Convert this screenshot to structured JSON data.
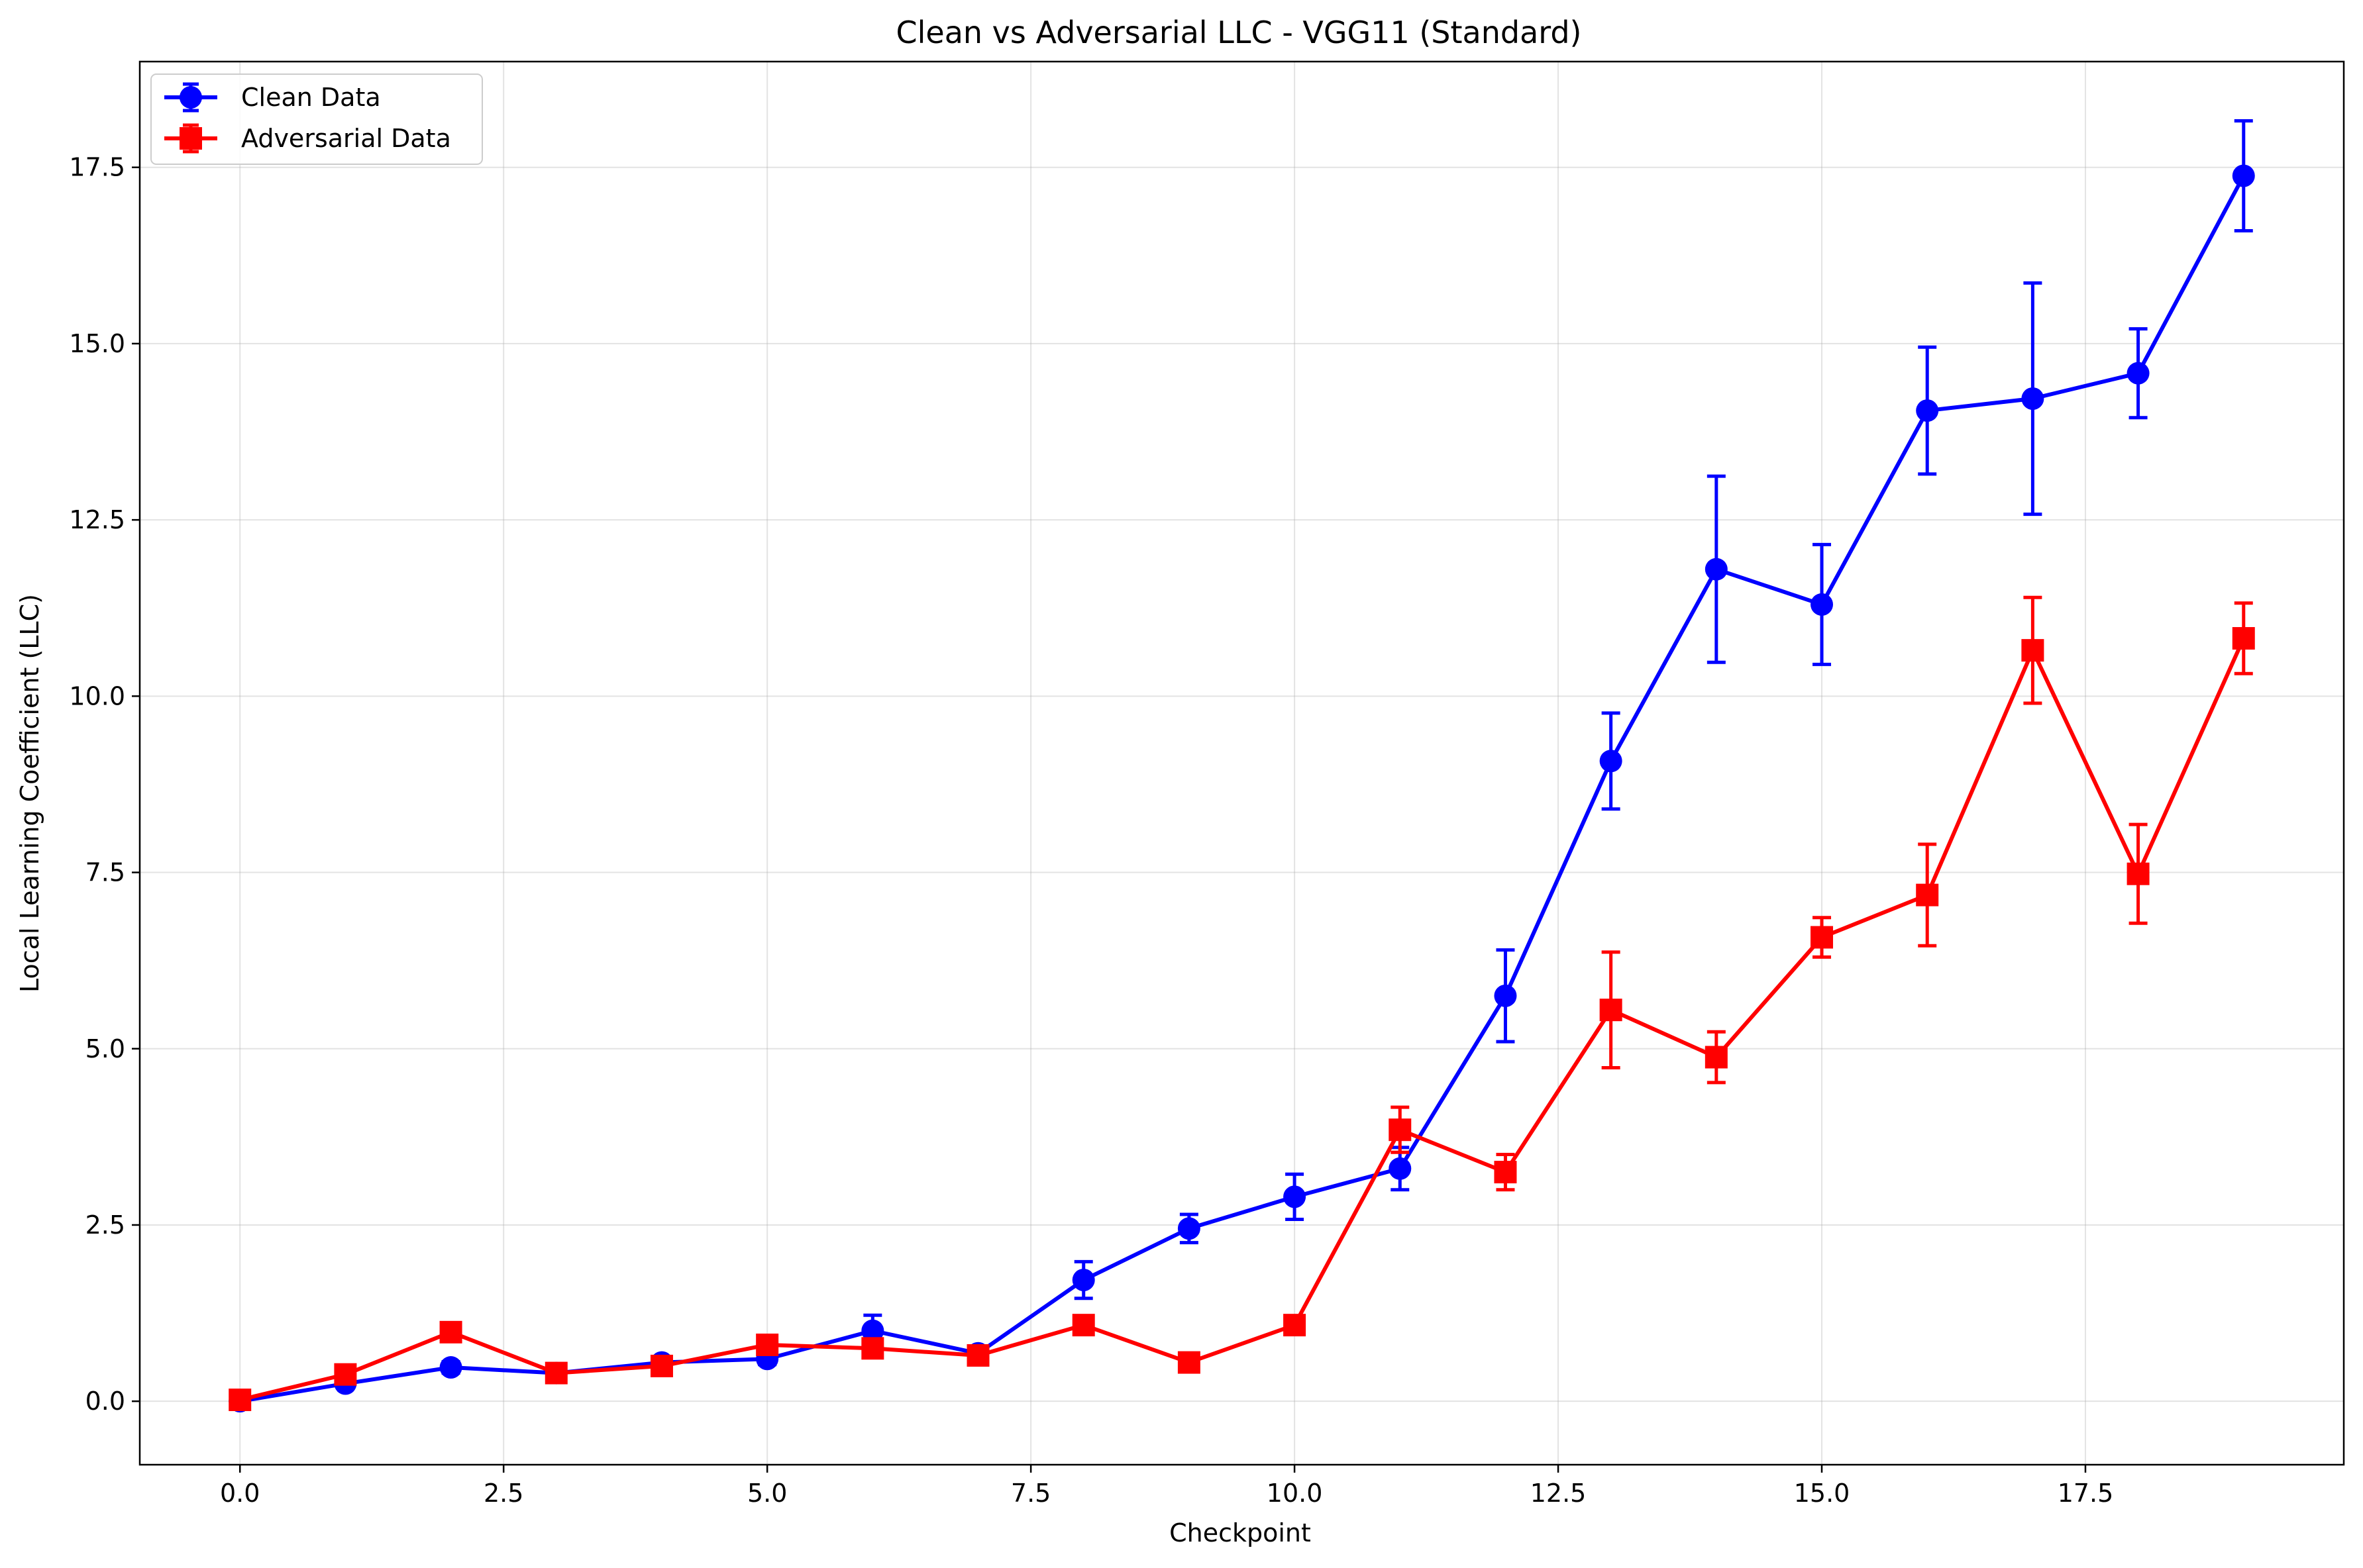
{
  "chart_data": {
    "type": "line",
    "title": "Clean vs Adversarial LLC - VGG11 (Standard)",
    "xlabel": "Checkpoint",
    "ylabel": "Local Learning Coefficient (LLC)",
    "xlim": [
      -0.95,
      19.95
    ],
    "ylim": [
      -0.9,
      19.0
    ],
    "xticks": [
      0.0,
      2.5,
      5.0,
      7.5,
      10.0,
      12.5,
      15.0,
      17.5
    ],
    "xtick_labels": [
      "0.0",
      "2.5",
      "5.0",
      "7.5",
      "10.0",
      "12.5",
      "15.0",
      "17.5"
    ],
    "yticks": [
      0.0,
      2.5,
      5.0,
      7.5,
      10.0,
      12.5,
      15.0,
      17.5
    ],
    "ytick_labels": [
      "0.0",
      "2.5",
      "5.0",
      "7.5",
      "10.0",
      "12.5",
      "15.0",
      "17.5"
    ],
    "grid": true,
    "legend_position": "top-left",
    "x": [
      0,
      1,
      2,
      3,
      4,
      5,
      6,
      7,
      8,
      9,
      10,
      11,
      12,
      13,
      14,
      15,
      16,
      17,
      18,
      19
    ],
    "series": [
      {
        "name": "Clean Data",
        "color": "#0000ff",
        "marker": "circle",
        "values": [
          0.0,
          0.25,
          0.48,
          0.4,
          0.55,
          0.6,
          1.0,
          0.68,
          1.72,
          2.45,
          2.9,
          3.3,
          5.75,
          9.08,
          11.8,
          11.3,
          14.05,
          14.22,
          14.58,
          17.38
        ],
        "errors": [
          0.05,
          0.06,
          0.08,
          0.06,
          0.08,
          0.08,
          0.22,
          0.08,
          0.26,
          0.2,
          0.32,
          0.3,
          0.65,
          0.68,
          1.32,
          0.85,
          0.9,
          1.64,
          0.63,
          0.78
        ]
      },
      {
        "name": "Adversarial Data",
        "color": "#ff0000",
        "marker": "square",
        "values": [
          0.02,
          0.38,
          0.98,
          0.4,
          0.5,
          0.8,
          0.75,
          0.65,
          1.08,
          0.55,
          1.08,
          3.85,
          3.25,
          5.55,
          4.88,
          6.58,
          7.18,
          10.65,
          7.48,
          10.82
        ],
        "errors": [
          0.05,
          0.08,
          0.1,
          0.06,
          0.08,
          0.1,
          0.1,
          0.08,
          0.12,
          0.1,
          0.12,
          0.32,
          0.25,
          0.82,
          0.36,
          0.28,
          0.72,
          0.75,
          0.7,
          0.5
        ]
      }
    ]
  }
}
